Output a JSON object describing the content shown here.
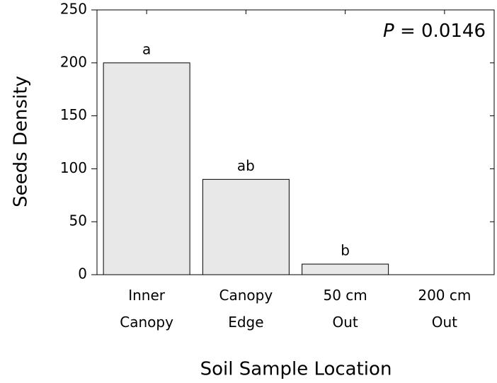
{
  "chart_data": {
    "type": "bar",
    "x_label": "Soil Sample Location",
    "y_label": "Seeds Density",
    "annotation_symbol": "P",
    "annotation_text": "= 0.0146",
    "categories": [
      "Inner\nCanopy",
      "Canopy\nEdge",
      "50 cm\nOut",
      "200 cm\nOut"
    ],
    "values": [
      200,
      90,
      10,
      0
    ],
    "group_letters": [
      "a",
      "ab",
      "b",
      null
    ],
    "color": "#e8e8e8",
    "ylim": [
      0,
      250
    ],
    "yticks": [
      0,
      50,
      100,
      150,
      200,
      250
    ]
  }
}
